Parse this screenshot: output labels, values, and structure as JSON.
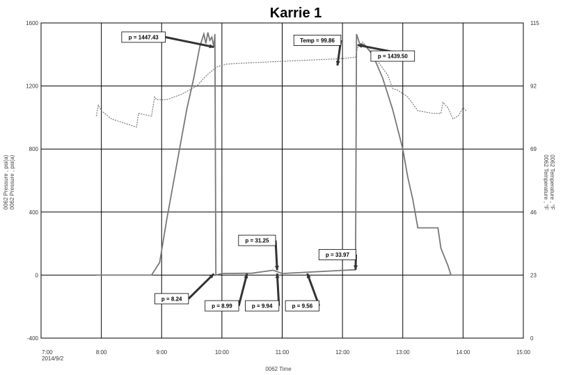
{
  "chart_data": {
    "type": "line",
    "title": "Karrie 1",
    "xlabel": "0062 Time",
    "ylabel_left": [
      "0062 Pressure , psi(a)",
      "0062 Pressure , psi(a)"
    ],
    "ylabel_right": [
      "0062 Temperature , °F",
      "0062 Temperature , °F"
    ],
    "x_ticks": [
      "7:00",
      "8:00",
      "9:00",
      "10:00",
      "11:00",
      "12:00",
      "13:00",
      "14:00",
      "15:00"
    ],
    "x_date_label": "2014/9/2",
    "x_range": [
      "7:00",
      "15:00"
    ],
    "y_left_ticks": [
      1600,
      1200,
      800,
      400,
      0,
      -400
    ],
    "y_left_range": [
      -400,
      1600
    ],
    "y_right_ticks": [
      115,
      92,
      69,
      46,
      23,
      0
    ],
    "y_right_range": [
      0,
      115
    ],
    "grid": true,
    "series": [
      {
        "axis": "left",
        "style": "solid",
        "points": [
          [
            "7:55",
            0
          ],
          [
            "8:50",
            0
          ],
          [
            "8:58",
            80
          ],
          [
            "9:05",
            350
          ],
          [
            "9:15",
            700
          ],
          [
            "9:25",
            1050
          ],
          [
            "9:32",
            1250
          ],
          [
            "9:38",
            1450
          ],
          [
            "9:42",
            1530
          ],
          [
            "9:44",
            1470
          ],
          [
            "9:46",
            1540
          ],
          [
            "9:48",
            1490
          ],
          [
            "9:50",
            1510
          ],
          [
            "9:52",
            1447
          ],
          [
            "9:53",
            1530
          ],
          [
            "9:54",
            0
          ],
          [
            "10:00",
            10
          ],
          [
            "10:30",
            12
          ],
          [
            "10:51",
            31
          ],
          [
            "11:00",
            10
          ],
          [
            "11:30",
            20
          ],
          [
            "12:00",
            30
          ],
          [
            "12:13",
            34
          ],
          [
            "12:14",
            1530
          ],
          [
            "12:17",
            1470
          ],
          [
            "12:22",
            1460
          ],
          [
            "12:30",
            1400
          ],
          [
            "12:40",
            1250
          ],
          [
            "12:50",
            1050
          ],
          [
            "13:00",
            800
          ],
          [
            "13:05",
            620
          ],
          [
            "13:10",
            480
          ],
          [
            "13:15",
            300
          ],
          [
            "13:35",
            300
          ],
          [
            "13:38",
            170
          ],
          [
            "13:45",
            60
          ],
          [
            "13:48",
            0
          ],
          [
            "14:00",
            0
          ]
        ]
      },
      {
        "axis": "right",
        "style": "dashed",
        "points": [
          [
            "7:55",
            81
          ],
          [
            "7:57",
            85
          ],
          [
            "8:00",
            83
          ],
          [
            "8:10",
            80
          ],
          [
            "8:35",
            77
          ],
          [
            "8:37",
            82
          ],
          [
            "8:50",
            81
          ],
          [
            "8:53",
            88
          ],
          [
            "8:55",
            87
          ],
          [
            "9:05",
            87
          ],
          [
            "9:20",
            89
          ],
          [
            "9:35",
            92
          ],
          [
            "9:45",
            96
          ],
          [
            "9:55",
            99
          ],
          [
            "10:05",
            100
          ],
          [
            "10:30",
            100.5
          ],
          [
            "11:00",
            101
          ],
          [
            "11:30",
            101.5
          ],
          [
            "12:00",
            102
          ],
          [
            "12:13",
            102.5
          ],
          [
            "12:15",
            106
          ],
          [
            "12:20",
            108
          ],
          [
            "12:25",
            106
          ],
          [
            "12:35",
            101
          ],
          [
            "12:45",
            96
          ],
          [
            "12:50",
            91
          ],
          [
            "12:55",
            90.5
          ],
          [
            "13:05",
            88
          ],
          [
            "13:15",
            83
          ],
          [
            "13:30",
            82
          ],
          [
            "13:38",
            82
          ],
          [
            "13:40",
            86
          ],
          [
            "13:45",
            84
          ],
          [
            "13:50",
            80
          ],
          [
            "13:55",
            81
          ],
          [
            "14:00",
            84
          ],
          [
            "14:03",
            83
          ]
        ]
      }
    ],
    "annotations": [
      {
        "text": "p = 1447.43",
        "target": [
          "9:52",
          1447
        ],
        "box": [
          "8:42",
          1510
        ]
      },
      {
        "text": "Temp = 99.86",
        "target": [
          "11:55",
          1330
        ],
        "box": [
          "11:35",
          1490
        ]
      },
      {
        "text": "p = 1439.50",
        "target": [
          "12:15",
          1460
        ],
        "box": [
          "12:50",
          1390
        ]
      },
      {
        "text": "p = 8.24",
        "target": [
          "9:52",
          8
        ],
        "box": [
          "9:10",
          -150
        ]
      },
      {
        "text": "p = 8.99",
        "target": [
          "10:25",
          9
        ],
        "box": [
          "10:00",
          -195
        ]
      },
      {
        "text": "p = 9.94",
        "target": [
          "10:55",
          10
        ],
        "box": [
          "10:40",
          -195
        ]
      },
      {
        "text": "p = 31.25",
        "target": [
          "10:55",
          31
        ],
        "box": [
          "10:35",
          220
        ]
      },
      {
        "text": "p = 9.56",
        "target": [
          "11:25",
          10
        ],
        "box": [
          "11:20",
          -195
        ]
      },
      {
        "text": "p = 33.97",
        "target": [
          "12:13",
          34
        ],
        "box": [
          "11:55",
          130
        ]
      }
    ]
  },
  "colors": {
    "grid": "#000000",
    "pressure_line": "#777777",
    "temperature_line": "#777777",
    "annotation_arrow": "#333333"
  }
}
